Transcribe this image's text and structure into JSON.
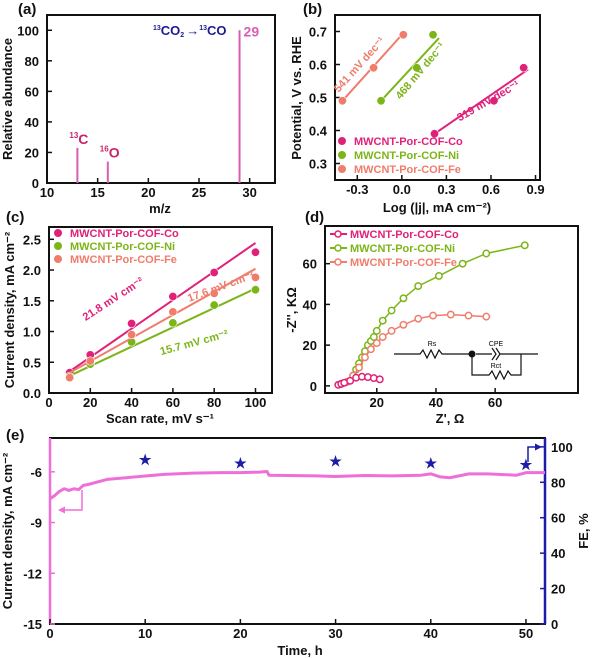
{
  "chart_data": [
    {
      "panel": "(a)",
      "type": "bar",
      "xlabel": "m/z",
      "ylabel": "Relative abundance",
      "xlim": [
        10,
        32.5
      ],
      "ylim": [
        0,
        110
      ],
      "xticks": [
        {
          "v": 10,
          "label": "10"
        },
        {
          "v": 15,
          "label": "15"
        },
        {
          "v": 20,
          "label": "20"
        },
        {
          "v": 25,
          "label": "25"
        },
        {
          "v": 30,
          "label": "30"
        }
      ],
      "yticks": [
        {
          "v": 0,
          "label": "0"
        },
        {
          "v": 20,
          "label": "20"
        },
        {
          "v": 40,
          "label": "40"
        },
        {
          "v": 60,
          "label": "60"
        },
        {
          "v": 80,
          "label": "80"
        },
        {
          "v": 100,
          "label": "100"
        }
      ],
      "bars": [
        {
          "x": 13,
          "y": 23
        },
        {
          "x": 16,
          "y": 14
        },
        {
          "x": 29,
          "y": 100
        }
      ],
      "bar_color": "#d65fb4",
      "annotations": [
        {
          "sup": "13",
          "text": "C",
          "x": 13,
          "y": 23
        },
        {
          "sup": "16",
          "text": "O",
          "x": 16,
          "y": 14
        },
        {
          "sup": "",
          "text": "29",
          "x": 29,
          "y": 100
        }
      ],
      "reaction": {
        "sup1": "13",
        "a": "CO",
        "sub": "2",
        "arrow": "→",
        "sup2": "13",
        "b": "CO"
      },
      "label_color": "#c8246a",
      "reaction_color": "#1b1b8f"
    },
    {
      "panel": "(b)",
      "type": "scatter",
      "xlabel": "Log (|j|, mA cm⁻²)",
      "ylabel": "Potential, V vs. RHE",
      "xlim": [
        -0.45,
        0.93
      ],
      "ylim": [
        0.25,
        0.75
      ],
      "xticks": [
        {
          "v": -0.3,
          "label": "-0.3"
        },
        {
          "v": 0,
          "label": "0.0"
        },
        {
          "v": 0.3,
          "label": "0.3"
        },
        {
          "v": 0.6,
          "label": "0.6"
        },
        {
          "v": 0.9,
          "label": "0.9"
        }
      ],
      "yticks": [
        {
          "v": 0.3,
          "label": "0.3"
        },
        {
          "v": 0.4,
          "label": "0.4"
        },
        {
          "v": 0.5,
          "label": "0.5"
        },
        {
          "v": 0.6,
          "label": "0.6"
        },
        {
          "v": 0.7,
          "label": "0.7"
        }
      ],
      "legend": "bottom-left",
      "series": [
        {
          "name": "MWCNT-Por-COF-Co",
          "color": "#e0217a",
          "x": [
            0.22,
            0.62,
            0.82
          ],
          "y": [
            0.39,
            0.49,
            0.59
          ],
          "fit": [
            [
              0.22,
              0.39
            ],
            [
              0.85,
              0.585
            ]
          ],
          "slope_label": "319 mV dec⁻¹"
        },
        {
          "name": "MWCNT-Por-COF-Ni",
          "color": "#7cb518",
          "x": [
            -0.14,
            0.1,
            0.21
          ],
          "y": [
            0.49,
            0.59,
            0.69
          ],
          "fit": [
            [
              -0.14,
              0.49
            ],
            [
              0.25,
              0.68
            ]
          ],
          "slope_label": "468 mV dec⁻¹"
        },
        {
          "name": "MWCNT-Por-COF-Fe",
          "color": "#f07c6c",
          "x": [
            -0.4,
            -0.19,
            0.01
          ],
          "y": [
            0.49,
            0.59,
            0.69
          ],
          "fit": [
            [
              -0.4,
              0.49
            ],
            [
              0.02,
              0.7
            ]
          ],
          "slope_label": "541 mV dec⁻¹"
        }
      ]
    },
    {
      "panel": "(c)",
      "type": "scatter",
      "xlabel": "Scan rate, mV s⁻¹",
      "ylabel": "Current density, mA cm⁻²",
      "xlim": [
        0,
        108
      ],
      "ylim": [
        0,
        2.7
      ],
      "xticks": [
        {
          "v": 0,
          "label": "0"
        },
        {
          "v": 20,
          "label": "20"
        },
        {
          "v": 40,
          "label": "40"
        },
        {
          "v": 60,
          "label": "60"
        },
        {
          "v": 80,
          "label": "80"
        },
        {
          "v": 100,
          "label": "100"
        }
      ],
      "yticks": [
        {
          "v": 0,
          "label": "0.0"
        },
        {
          "v": 0.5,
          "label": "0.5"
        },
        {
          "v": 1,
          "label": "1.0"
        },
        {
          "v": 1.5,
          "label": "1.5"
        },
        {
          "v": 2,
          "label": "2.0"
        },
        {
          "v": 2.5,
          "label": "2.5"
        }
      ],
      "legend": "top-left",
      "series": [
        {
          "name": "MWCNT-Por-COF-Co",
          "color": "#e0217a",
          "x": [
            10,
            20,
            40,
            60,
            80,
            100
          ],
          "y": [
            0.33,
            0.62,
            1.13,
            1.57,
            1.96,
            2.29
          ],
          "fit": [
            [
              10,
              0.35
            ],
            [
              100,
              2.44
            ]
          ],
          "slope_label": "21.8 mV cm⁻²"
        },
        {
          "name": "MWCNT-Por-COF-Ni",
          "color": "#7cb518",
          "x": [
            10,
            20,
            40,
            60,
            80,
            100
          ],
          "y": [
            0.27,
            0.47,
            0.83,
            1.14,
            1.43,
            1.68
          ],
          "fit": [
            [
              10,
              0.28
            ],
            [
              100,
              1.7
            ]
          ],
          "slope_label": "15.7 mV cm⁻²"
        },
        {
          "name": "MWCNT-Por-COF-Fe",
          "color": "#f07c6c",
          "x": [
            10,
            20,
            40,
            60,
            80,
            100
          ],
          "y": [
            0.25,
            0.52,
            0.95,
            1.32,
            1.62,
            1.88
          ],
          "fit": [
            [
              10,
              0.33
            ],
            [
              100,
              2.02
            ]
          ],
          "slope_label": "17.6 mV cm⁻²"
        }
      ]
    },
    {
      "panel": "(d)",
      "type": "line",
      "xlabel": "Z', Ω",
      "ylabel": "-Z'', KΩ",
      "xlim": [
        2.5,
        88
      ],
      "ylim": [
        -3.5,
        78.5
      ],
      "xticks": [
        {
          "v": 20,
          "label": "20"
        },
        {
          "v": 40,
          "label": "40"
        },
        {
          "v": 60,
          "label": "60"
        }
      ],
      "yticks": [
        {
          "v": 0,
          "label": "0"
        },
        {
          "v": 20,
          "label": "20"
        },
        {
          "v": 40,
          "label": "40"
        },
        {
          "v": 60,
          "label": "60"
        }
      ],
      "legend": "top-left",
      "series": [
        {
          "name": "MWCNT-Por-COF-Co",
          "color": "#e0217a",
          "x": [
            7,
            8,
            9,
            11,
            13,
            15,
            17,
            19,
            21
          ],
          "y": [
            0.5,
            1,
            1.5,
            2.5,
            4,
            4.5,
            4.3,
            3.8,
            3.2
          ]
        },
        {
          "name": "MWCNT-Por-COF-Ni",
          "color": "#7cb518",
          "x": [
            8,
            10,
            12,
            13,
            14,
            15,
            16,
            17,
            18,
            19,
            20,
            22,
            25,
            29,
            34,
            41,
            49,
            57,
            70
          ],
          "y": [
            1,
            2,
            5,
            8,
            11,
            14,
            17,
            20,
            22,
            24,
            27,
            32,
            37,
            43,
            49,
            54,
            60,
            65,
            69
          ]
        },
        {
          "name": "MWCNT-Por-COF-Fe",
          "color": "#f07c6c",
          "x": [
            8,
            10,
            12,
            14,
            16,
            18,
            20,
            22,
            25,
            29,
            34,
            39,
            45,
            51,
            57
          ],
          "y": [
            1,
            2,
            5,
            9,
            14,
            18,
            21,
            24,
            27,
            30,
            33,
            34.5,
            35,
            34.5,
            34
          ]
        }
      ],
      "circuit": {
        "rs": "Rs",
        "cpe": "CPE",
        "rct": "Rct"
      }
    },
    {
      "panel": "(e)",
      "type": "line",
      "xlabel": "Time, h",
      "ylabel": "Current density, mA cm⁻²",
      "y2label": "FE, %",
      "xlim": [
        0,
        52
      ],
      "ylim": [
        -15,
        -4
      ],
      "y2lim": [
        0,
        105
      ],
      "xticks": [
        {
          "v": 0,
          "label": "0"
        },
        {
          "v": 10,
          "label": "10"
        },
        {
          "v": 20,
          "label": "20"
        },
        {
          "v": 30,
          "label": "30"
        },
        {
          "v": 40,
          "label": "40"
        },
        {
          "v": 50,
          "label": "50"
        }
      ],
      "yticks": [
        {
          "v": -15,
          "label": "-15"
        },
        {
          "v": -12,
          "label": "-12"
        },
        {
          "v": -9,
          "label": "-9"
        },
        {
          "v": -6,
          "label": "-6"
        }
      ],
      "y2ticks": [
        {
          "v": 0,
          "label": "0"
        },
        {
          "v": 20,
          "label": "20"
        },
        {
          "v": 40,
          "label": "40"
        },
        {
          "v": 60,
          "label": "60"
        },
        {
          "v": 80,
          "label": "80"
        },
        {
          "v": 100,
          "label": "100"
        }
      ],
      "current": {
        "color": "#ee6fd8",
        "x": [
          0,
          0.5,
          1,
          1.5,
          2,
          2.5,
          3,
          3.5,
          4,
          5,
          6,
          8,
          10,
          12,
          15,
          18,
          20,
          22,
          22.8,
          23,
          25,
          28,
          30,
          33,
          36,
          39,
          40,
          41,
          42,
          44,
          46,
          49,
          50,
          52
        ],
        "y": [
          -7.6,
          -7.4,
          -7.15,
          -7.0,
          -7.1,
          -7.0,
          -7.05,
          -6.8,
          -6.75,
          -6.6,
          -6.45,
          -6.35,
          -6.25,
          -6.15,
          -6.08,
          -6.05,
          -6.05,
          -6.02,
          -5.98,
          -6.2,
          -6.22,
          -6.24,
          -6.28,
          -6.22,
          -6.24,
          -6.2,
          -6.12,
          -6.3,
          -6.35,
          -6.12,
          -6.12,
          -6.2,
          -6.05,
          -6.05
        ]
      },
      "fe": {
        "color": "#1c1ca8",
        "x": [
          10,
          20,
          30,
          40,
          50
        ],
        "y": [
          93,
          91,
          92,
          91,
          90
        ]
      }
    }
  ]
}
